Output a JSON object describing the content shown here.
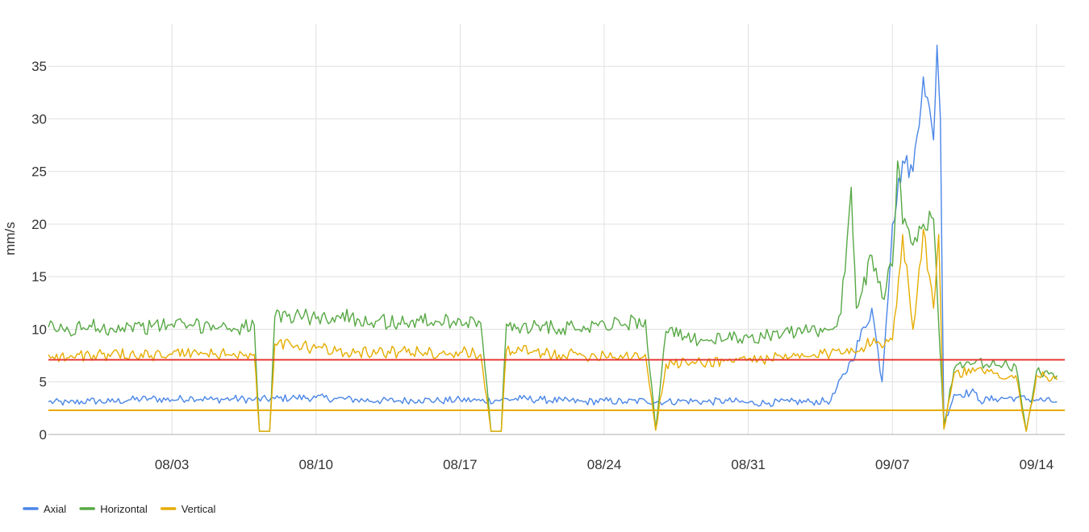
{
  "chart_data": {
    "type": "line",
    "title": "",
    "xlabel": "",
    "ylabel": "mm/s",
    "x_range": [
      "2024-07-28",
      "2024-09-15T09:00"
    ],
    "ylim": [
      0,
      39
    ],
    "y_ticks": [
      0,
      5,
      10,
      15,
      20,
      25,
      30,
      35
    ],
    "x_ticks": [
      {
        "date": "2024-08-03",
        "label": "08/03"
      },
      {
        "date": "2024-08-10",
        "label": "08/10"
      },
      {
        "date": "2024-08-17",
        "label": "08/17"
      },
      {
        "date": "2024-08-24",
        "label": "08/24"
      },
      {
        "date": "2024-08-31",
        "label": "08/31"
      },
      {
        "date": "2024-09-07",
        "label": "09/07"
      },
      {
        "date": "2024-09-14",
        "label": "09/14"
      }
    ],
    "grid": true,
    "legend_position": "bottom-left",
    "thresholds": [
      {
        "value": 7.1,
        "color": "#e53935"
      },
      {
        "value": 2.3,
        "color": "#e6ac00"
      }
    ],
    "series": [
      {
        "name": "Axial",
        "color": "#4a86e8",
        "points": [
          [
            "2024-07-28",
            3.1
          ],
          [
            "2024-07-29",
            3.0
          ],
          [
            "2024-07-30",
            3.2
          ],
          [
            "2024-07-31",
            3.1
          ],
          [
            "2024-08-01",
            3.3
          ],
          [
            "2024-08-02",
            3.4
          ],
          [
            "2024-08-03",
            3.3
          ],
          [
            "2024-08-04",
            3.5
          ],
          [
            "2024-08-05",
            3.3
          ],
          [
            "2024-08-06",
            3.4
          ],
          [
            "2024-08-07",
            3.3
          ],
          [
            "2024-08-08",
            3.4
          ],
          [
            "2024-08-09",
            3.5
          ],
          [
            "2024-08-10",
            3.5
          ],
          [
            "2024-08-11",
            3.4
          ],
          [
            "2024-08-12",
            3.3
          ],
          [
            "2024-08-13",
            3.2
          ],
          [
            "2024-08-14",
            3.2
          ],
          [
            "2024-08-15",
            3.3
          ],
          [
            "2024-08-16",
            3.2
          ],
          [
            "2024-08-17",
            3.3
          ],
          [
            "2024-08-18",
            3.2
          ],
          [
            "2024-08-19",
            3.3
          ],
          [
            "2024-08-20",
            3.4
          ],
          [
            "2024-08-21",
            3.3
          ],
          [
            "2024-08-22",
            3.2
          ],
          [
            "2024-08-23",
            3.1
          ],
          [
            "2024-08-24",
            3.2
          ],
          [
            "2024-08-25",
            3.1
          ],
          [
            "2024-08-26",
            3.2
          ],
          [
            "2024-08-27",
            3.1
          ],
          [
            "2024-08-28",
            3.2
          ],
          [
            "2024-08-29",
            3.1
          ],
          [
            "2024-08-30",
            3.2
          ],
          [
            "2024-08-31",
            3.0
          ],
          [
            "2024-09-01",
            3.0
          ],
          [
            "2024-09-02",
            3.1
          ],
          [
            "2024-09-03",
            3.1
          ],
          [
            "2024-09-04",
            3.2
          ],
          [
            "2024-09-05",
            7.0
          ],
          [
            "2024-09-06",
            12.0
          ],
          [
            "2024-09-06T12:00",
            5.0
          ],
          [
            "2024-09-07",
            20.0
          ],
          [
            "2024-09-07T12:00",
            26.0
          ],
          [
            "2024-09-08",
            25.0
          ],
          [
            "2024-09-08T12:00",
            34.0
          ],
          [
            "2024-09-09",
            28.0
          ],
          [
            "2024-09-09T04:00",
            37.0
          ],
          [
            "2024-09-09T08:00",
            30.0
          ],
          [
            "2024-09-09T12:00",
            1.0
          ],
          [
            "2024-09-10",
            3.8
          ],
          [
            "2024-09-11",
            4.0
          ],
          [
            "2024-09-11T06:00",
            3.2
          ],
          [
            "2024-09-12",
            3.4
          ],
          [
            "2024-09-13",
            3.5
          ],
          [
            "2024-09-14",
            3.3
          ],
          [
            "2024-09-15",
            3.1
          ]
        ]
      },
      {
        "name": "Horizontal",
        "color": "#57a845",
        "points": [
          [
            "2024-07-28",
            10.2
          ],
          [
            "2024-07-29",
            9.8
          ],
          [
            "2024-07-30",
            10.4
          ],
          [
            "2024-07-31",
            10.1
          ],
          [
            "2024-08-01",
            10.3
          ],
          [
            "2024-08-02",
            10.2
          ],
          [
            "2024-08-03",
            10.5
          ],
          [
            "2024-08-04",
            10.3
          ],
          [
            "2024-08-05",
            10.4
          ],
          [
            "2024-08-06",
            10.1
          ],
          [
            "2024-08-07",
            10.4
          ],
          [
            "2024-08-07T06:00",
            0.3
          ],
          [
            "2024-08-07T18:00",
            0.3
          ],
          [
            "2024-08-08",
            11.2
          ],
          [
            "2024-08-09",
            11.4
          ],
          [
            "2024-08-10",
            11.0
          ],
          [
            "2024-08-11",
            11.3
          ],
          [
            "2024-08-12",
            11.0
          ],
          [
            "2024-08-13",
            10.8
          ],
          [
            "2024-08-14",
            10.6
          ],
          [
            "2024-08-15",
            10.8
          ],
          [
            "2024-08-16",
            10.7
          ],
          [
            "2024-08-17",
            10.9
          ],
          [
            "2024-08-18",
            10.6
          ],
          [
            "2024-08-18T12:00",
            0.3
          ],
          [
            "2024-08-19",
            0.3
          ],
          [
            "2024-08-19T06:00",
            10.5
          ],
          [
            "2024-08-20",
            10.2
          ],
          [
            "2024-08-21",
            10.4
          ],
          [
            "2024-08-22",
            10.1
          ],
          [
            "2024-08-23",
            10.3
          ],
          [
            "2024-08-24",
            10.6
          ],
          [
            "2024-08-25",
            10.5
          ],
          [
            "2024-08-26",
            10.9
          ],
          [
            "2024-08-26T12:00",
            0.4
          ],
          [
            "2024-08-27",
            9.8
          ],
          [
            "2024-08-28",
            9.2
          ],
          [
            "2024-08-29",
            9.0
          ],
          [
            "2024-08-30",
            9.1
          ],
          [
            "2024-08-31",
            9.2
          ],
          [
            "2024-09-01",
            9.4
          ],
          [
            "2024-09-02",
            9.6
          ],
          [
            "2024-09-03",
            9.8
          ],
          [
            "2024-09-04",
            10.0
          ],
          [
            "2024-09-04T12:00",
            11.5
          ],
          [
            "2024-09-05",
            23.5
          ],
          [
            "2024-09-05T06:00",
            12.0
          ],
          [
            "2024-09-06",
            17.0
          ],
          [
            "2024-09-06T12:00",
            13.0
          ],
          [
            "2024-09-07",
            16.0
          ],
          [
            "2024-09-07T06:00",
            26.0
          ],
          [
            "2024-09-07T12:00",
            20.0
          ],
          [
            "2024-09-08",
            18.0
          ],
          [
            "2024-09-08T12:00",
            20.0
          ],
          [
            "2024-09-09",
            20.5
          ],
          [
            "2024-09-09T12:00",
            0.8
          ],
          [
            "2024-09-10",
            6.2
          ],
          [
            "2024-09-11",
            6.8
          ],
          [
            "2024-09-12",
            6.6
          ],
          [
            "2024-09-13",
            6.5
          ],
          [
            "2024-09-13T12:00",
            0.3
          ],
          [
            "2024-09-14",
            6.0
          ],
          [
            "2024-09-15",
            5.6
          ]
        ]
      },
      {
        "name": "Vertical",
        "color": "#e6ac00",
        "points": [
          [
            "2024-07-28",
            7.6
          ],
          [
            "2024-07-29",
            7.3
          ],
          [
            "2024-07-30",
            7.6
          ],
          [
            "2024-07-31",
            7.4
          ],
          [
            "2024-08-01",
            7.7
          ],
          [
            "2024-08-02",
            7.5
          ],
          [
            "2024-08-03",
            7.6
          ],
          [
            "2024-08-04",
            7.8
          ],
          [
            "2024-08-05",
            7.6
          ],
          [
            "2024-08-06",
            7.7
          ],
          [
            "2024-08-07",
            7.6
          ],
          [
            "2024-08-07T06:00",
            0.3
          ],
          [
            "2024-08-07T18:00",
            0.3
          ],
          [
            "2024-08-08",
            8.6
          ],
          [
            "2024-08-09",
            8.4
          ],
          [
            "2024-08-10",
            8.2
          ],
          [
            "2024-08-11",
            7.9
          ],
          [
            "2024-08-12",
            7.9
          ],
          [
            "2024-08-13",
            7.8
          ],
          [
            "2024-08-14",
            7.8
          ],
          [
            "2024-08-15",
            7.9
          ],
          [
            "2024-08-16",
            7.7
          ],
          [
            "2024-08-17",
            7.8
          ],
          [
            "2024-08-18",
            7.6
          ],
          [
            "2024-08-18T12:00",
            0.3
          ],
          [
            "2024-08-19",
            0.3
          ],
          [
            "2024-08-19T06:00",
            8.0
          ],
          [
            "2024-08-20",
            7.9
          ],
          [
            "2024-08-21",
            7.7
          ],
          [
            "2024-08-22",
            7.6
          ],
          [
            "2024-08-23",
            7.5
          ],
          [
            "2024-08-24",
            7.6
          ],
          [
            "2024-08-25",
            7.5
          ],
          [
            "2024-08-26",
            7.6
          ],
          [
            "2024-08-26T12:00",
            0.4
          ],
          [
            "2024-08-27",
            6.7
          ],
          [
            "2024-08-28",
            6.8
          ],
          [
            "2024-08-29",
            6.9
          ],
          [
            "2024-08-30",
            7.0
          ],
          [
            "2024-08-31",
            7.2
          ],
          [
            "2024-09-01",
            7.2
          ],
          [
            "2024-09-02",
            7.3
          ],
          [
            "2024-09-03",
            7.4
          ],
          [
            "2024-09-04",
            7.7
          ],
          [
            "2024-09-05",
            8.2
          ],
          [
            "2024-09-06",
            8.6
          ],
          [
            "2024-09-07",
            9.0
          ],
          [
            "2024-09-07T12:00",
            19.0
          ],
          [
            "2024-09-08",
            10.0
          ],
          [
            "2024-09-08T12:00",
            19.5
          ],
          [
            "2024-09-09",
            12.0
          ],
          [
            "2024-09-09T06:00",
            19.0
          ],
          [
            "2024-09-09T12:00",
            0.5
          ],
          [
            "2024-09-10",
            5.8
          ],
          [
            "2024-09-11",
            6.0
          ],
          [
            "2024-09-12",
            5.8
          ],
          [
            "2024-09-13",
            5.6
          ],
          [
            "2024-09-13T12:00",
            0.3
          ],
          [
            "2024-09-14",
            5.6
          ],
          [
            "2024-09-15",
            5.2
          ]
        ]
      }
    ]
  }
}
